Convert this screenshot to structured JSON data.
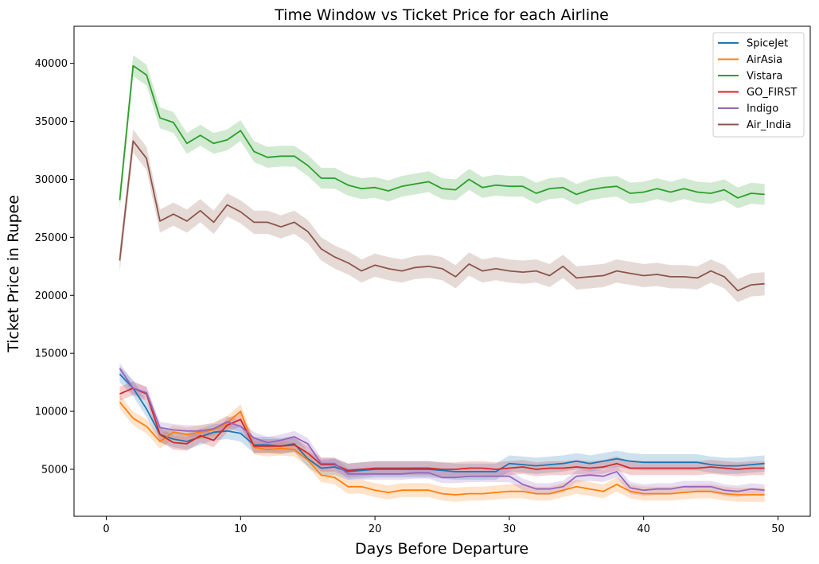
{
  "chart_data": {
    "type": "line",
    "title": "Time Window vs Ticket Price for each Airline",
    "xlabel": "Days Before Departure",
    "ylabel": "Ticket Price in Rupee",
    "xlim": [
      -2.4,
      52.4
    ],
    "ylim": [
      950,
      43200
    ],
    "xticks": [
      0,
      10,
      20,
      30,
      40,
      50
    ],
    "yticks": [
      5000,
      10000,
      15000,
      20000,
      25000,
      30000,
      35000,
      40000
    ],
    "grid": false,
    "legend_position": "top-right",
    "x": [
      1,
      2,
      3,
      4,
      5,
      6,
      7,
      8,
      9,
      10,
      11,
      12,
      13,
      14,
      15,
      16,
      17,
      18,
      19,
      20,
      21,
      22,
      23,
      24,
      25,
      26,
      27,
      28,
      29,
      30,
      31,
      32,
      33,
      34,
      35,
      36,
      37,
      38,
      39,
      40,
      41,
      42,
      43,
      44,
      45,
      46,
      47,
      48,
      49
    ],
    "series": [
      {
        "name": "SpiceJet",
        "color": "#1f77b4",
        "band": 700,
        "values": [
          13200,
          12000,
          10200,
          8000,
          7600,
          7400,
          7800,
          8200,
          8300,
          8100,
          7100,
          7100,
          7000,
          7200,
          5900,
          5100,
          5200,
          4800,
          4900,
          5000,
          5000,
          5000,
          5000,
          5000,
          4900,
          4800,
          4800,
          4800,
          4800,
          5500,
          5400,
          5300,
          5400,
          5500,
          5700,
          5500,
          5700,
          5900,
          5700,
          5600,
          5600,
          5600,
          5600,
          5600,
          5400,
          5300,
          5300,
          5400,
          5500
        ]
      },
      {
        "name": "AirAsia",
        "color": "#ff7f0e",
        "band": 600,
        "values": [
          10800,
          9400,
          8700,
          7400,
          8200,
          8000,
          8200,
          8400,
          9000,
          10000,
          6900,
          6700,
          6800,
          6700,
          5800,
          4500,
          4300,
          3500,
          3500,
          3200,
          3000,
          3200,
          3200,
          3200,
          2900,
          2800,
          2900,
          2900,
          3000,
          3100,
          3100,
          2900,
          2900,
          3200,
          3500,
          3300,
          3100,
          3700,
          3100,
          2900,
          2900,
          2900,
          3000,
          3100,
          3100,
          2900,
          2800,
          2800,
          2800
        ]
      },
      {
        "name": "Vistara",
        "color": "#2ca02c",
        "band": 900,
        "values": [
          28200,
          39800,
          39000,
          35300,
          34900,
          33100,
          33800,
          33100,
          33400,
          34200,
          32400,
          31900,
          32000,
          32000,
          31200,
          30100,
          30100,
          29500,
          29200,
          29300,
          29000,
          29400,
          29600,
          29800,
          29200,
          29100,
          30000,
          29300,
          29500,
          29400,
          29400,
          28800,
          29200,
          29300,
          28700,
          29100,
          29300,
          29400,
          28800,
          28900,
          29200,
          28900,
          29200,
          28900,
          28800,
          29100,
          28400,
          28800,
          28700
        ]
      },
      {
        "name": "GO_FIRST",
        "color": "#d62728",
        "band": 600,
        "values": [
          11500,
          12000,
          11500,
          8000,
          7300,
          7200,
          7900,
          7500,
          8800,
          9300,
          7000,
          7000,
          7000,
          7100,
          6400,
          5400,
          5400,
          4900,
          5000,
          5100,
          5100,
          5100,
          5100,
          5100,
          5000,
          5000,
          5100,
          5100,
          5000,
          5100,
          5200,
          5000,
          5100,
          5100,
          5200,
          5100,
          5200,
          5500,
          5100,
          5100,
          5100,
          5100,
          5100,
          5100,
          5200,
          5100,
          5000,
          5100,
          5100
        ]
      },
      {
        "name": "Indigo",
        "color": "#9467bd",
        "band": 500,
        "values": [
          13700,
          12000,
          11600,
          8600,
          8400,
          8300,
          8300,
          8500,
          9100,
          8700,
          7700,
          7300,
          7500,
          7800,
          7200,
          5500,
          5500,
          4600,
          4600,
          4600,
          4600,
          4600,
          4700,
          4700,
          4300,
          4300,
          4400,
          4400,
          4400,
          4400,
          3700,
          3300,
          3300,
          3500,
          4400,
          4500,
          4400,
          4800,
          3400,
          3200,
          3300,
          3300,
          3500,
          3500,
          3500,
          3200,
          3100,
          3300,
          3200
        ]
      },
      {
        "name": "Air_India",
        "color": "#8c564b",
        "band": 1000,
        "values": [
          23000,
          33300,
          31800,
          26400,
          27000,
          26400,
          27300,
          26300,
          27800,
          27200,
          26300,
          26300,
          25900,
          26300,
          25500,
          24000,
          23300,
          22800,
          22100,
          22600,
          22300,
          22100,
          22400,
          22500,
          22300,
          21600,
          22700,
          22100,
          22300,
          22100,
          22000,
          22100,
          21700,
          22500,
          21500,
          21600,
          21700,
          22100,
          21900,
          21700,
          21800,
          21600,
          21600,
          21500,
          22100,
          21600,
          20400,
          20900,
          21000
        ]
      }
    ]
  }
}
